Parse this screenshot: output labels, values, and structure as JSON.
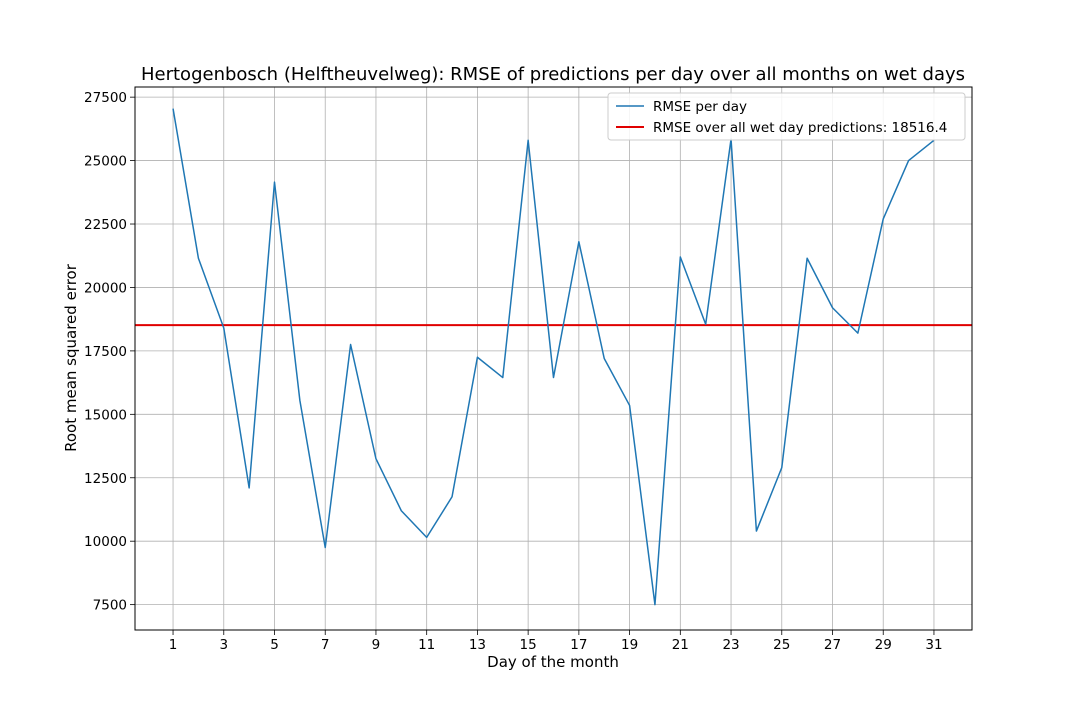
{
  "chart_data": {
    "type": "line",
    "title": "Hertogenbosch (Helftheuvelweg): RMSE of predictions per day over all months on wet days",
    "xlabel": "Day of the month",
    "ylabel": "Root mean squared error",
    "xlim": [
      -0.5,
      32.5
    ],
    "ylim": [
      6500,
      27900
    ],
    "xticks": [
      1,
      3,
      5,
      7,
      9,
      11,
      13,
      15,
      17,
      19,
      21,
      23,
      25,
      27,
      29,
      31
    ],
    "yticks": [
      7500,
      10000,
      12500,
      15000,
      17500,
      20000,
      22500,
      25000,
      27500
    ],
    "grid": true,
    "legend_position": "top-right",
    "series": [
      {
        "name": "RMSE per day",
        "color": "#1f77b4",
        "x": [
          1,
          2,
          3,
          4,
          5,
          6,
          7,
          8,
          9,
          10,
          11,
          12,
          13,
          14,
          15,
          16,
          17,
          18,
          19,
          20,
          21,
          22,
          23,
          24,
          25,
          26,
          27,
          28,
          29,
          30,
          31
        ],
        "values": [
          27050,
          21150,
          18400,
          12100,
          24150,
          15550,
          9750,
          17750,
          13250,
          11200,
          10150,
          11750,
          17250,
          16450,
          25800,
          16450,
          21800,
          17200,
          15350,
          7500,
          21200,
          18550,
          25850,
          10400,
          12900,
          21150,
          19200,
          18200,
          22700,
          25000,
          25800
        ]
      }
    ],
    "reference_lines": [
      {
        "name": "RMSE over all wet day predictions: 18516.4",
        "color": "#e00000",
        "y": 18516.4
      }
    ]
  }
}
